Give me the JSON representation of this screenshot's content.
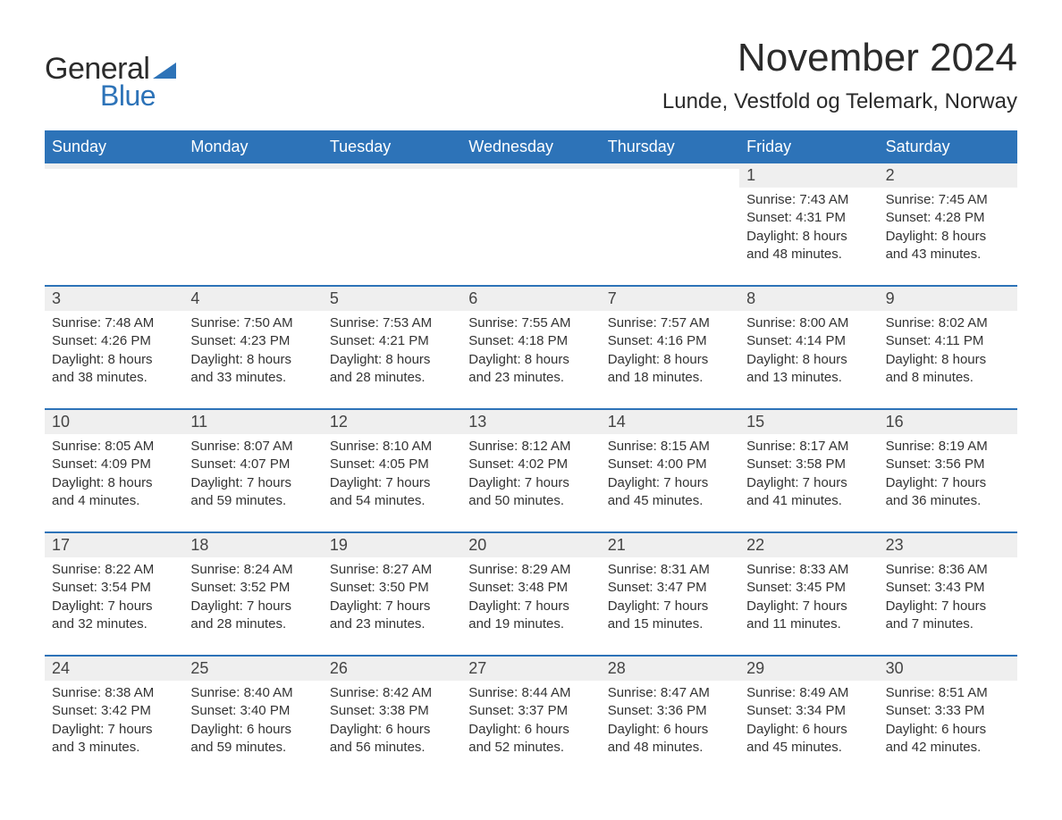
{
  "logo": {
    "text_general": "General",
    "text_blue": "Blue",
    "tri_color": "#2d73b8"
  },
  "title": "November 2024",
  "location": "Lunde, Vestfold og Telemark, Norway",
  "colors": {
    "header_bg": "#2d73b8",
    "header_text": "#ffffff",
    "daynum_bg": "#efefef",
    "border": "#2d73b8",
    "text": "#333333",
    "page_bg": "#ffffff"
  },
  "weekdays": [
    "Sunday",
    "Monday",
    "Tuesday",
    "Wednesday",
    "Thursday",
    "Friday",
    "Saturday"
  ],
  "weeks": [
    [
      {
        "n": "",
        "empty": true
      },
      {
        "n": "",
        "empty": true
      },
      {
        "n": "",
        "empty": true
      },
      {
        "n": "",
        "empty": true
      },
      {
        "n": "",
        "empty": true
      },
      {
        "n": "1",
        "sr": "Sunrise: 7:43 AM",
        "ss": "Sunset: 4:31 PM",
        "d1": "Daylight: 8 hours",
        "d2": "and 48 minutes."
      },
      {
        "n": "2",
        "sr": "Sunrise: 7:45 AM",
        "ss": "Sunset: 4:28 PM",
        "d1": "Daylight: 8 hours",
        "d2": "and 43 minutes."
      }
    ],
    [
      {
        "n": "3",
        "sr": "Sunrise: 7:48 AM",
        "ss": "Sunset: 4:26 PM",
        "d1": "Daylight: 8 hours",
        "d2": "and 38 minutes."
      },
      {
        "n": "4",
        "sr": "Sunrise: 7:50 AM",
        "ss": "Sunset: 4:23 PM",
        "d1": "Daylight: 8 hours",
        "d2": "and 33 minutes."
      },
      {
        "n": "5",
        "sr": "Sunrise: 7:53 AM",
        "ss": "Sunset: 4:21 PM",
        "d1": "Daylight: 8 hours",
        "d2": "and 28 minutes."
      },
      {
        "n": "6",
        "sr": "Sunrise: 7:55 AM",
        "ss": "Sunset: 4:18 PM",
        "d1": "Daylight: 8 hours",
        "d2": "and 23 minutes."
      },
      {
        "n": "7",
        "sr": "Sunrise: 7:57 AM",
        "ss": "Sunset: 4:16 PM",
        "d1": "Daylight: 8 hours",
        "d2": "and 18 minutes."
      },
      {
        "n": "8",
        "sr": "Sunrise: 8:00 AM",
        "ss": "Sunset: 4:14 PM",
        "d1": "Daylight: 8 hours",
        "d2": "and 13 minutes."
      },
      {
        "n": "9",
        "sr": "Sunrise: 8:02 AM",
        "ss": "Sunset: 4:11 PM",
        "d1": "Daylight: 8 hours",
        "d2": "and 8 minutes."
      }
    ],
    [
      {
        "n": "10",
        "sr": "Sunrise: 8:05 AM",
        "ss": "Sunset: 4:09 PM",
        "d1": "Daylight: 8 hours",
        "d2": "and 4 minutes."
      },
      {
        "n": "11",
        "sr": "Sunrise: 8:07 AM",
        "ss": "Sunset: 4:07 PM",
        "d1": "Daylight: 7 hours",
        "d2": "and 59 minutes."
      },
      {
        "n": "12",
        "sr": "Sunrise: 8:10 AM",
        "ss": "Sunset: 4:05 PM",
        "d1": "Daylight: 7 hours",
        "d2": "and 54 minutes."
      },
      {
        "n": "13",
        "sr": "Sunrise: 8:12 AM",
        "ss": "Sunset: 4:02 PM",
        "d1": "Daylight: 7 hours",
        "d2": "and 50 minutes."
      },
      {
        "n": "14",
        "sr": "Sunrise: 8:15 AM",
        "ss": "Sunset: 4:00 PM",
        "d1": "Daylight: 7 hours",
        "d2": "and 45 minutes."
      },
      {
        "n": "15",
        "sr": "Sunrise: 8:17 AM",
        "ss": "Sunset: 3:58 PM",
        "d1": "Daylight: 7 hours",
        "d2": "and 41 minutes."
      },
      {
        "n": "16",
        "sr": "Sunrise: 8:19 AM",
        "ss": "Sunset: 3:56 PM",
        "d1": "Daylight: 7 hours",
        "d2": "and 36 minutes."
      }
    ],
    [
      {
        "n": "17",
        "sr": "Sunrise: 8:22 AM",
        "ss": "Sunset: 3:54 PM",
        "d1": "Daylight: 7 hours",
        "d2": "and 32 minutes."
      },
      {
        "n": "18",
        "sr": "Sunrise: 8:24 AM",
        "ss": "Sunset: 3:52 PM",
        "d1": "Daylight: 7 hours",
        "d2": "and 28 minutes."
      },
      {
        "n": "19",
        "sr": "Sunrise: 8:27 AM",
        "ss": "Sunset: 3:50 PM",
        "d1": "Daylight: 7 hours",
        "d2": "and 23 minutes."
      },
      {
        "n": "20",
        "sr": "Sunrise: 8:29 AM",
        "ss": "Sunset: 3:48 PM",
        "d1": "Daylight: 7 hours",
        "d2": "and 19 minutes."
      },
      {
        "n": "21",
        "sr": "Sunrise: 8:31 AM",
        "ss": "Sunset: 3:47 PM",
        "d1": "Daylight: 7 hours",
        "d2": "and 15 minutes."
      },
      {
        "n": "22",
        "sr": "Sunrise: 8:33 AM",
        "ss": "Sunset: 3:45 PM",
        "d1": "Daylight: 7 hours",
        "d2": "and 11 minutes."
      },
      {
        "n": "23",
        "sr": "Sunrise: 8:36 AM",
        "ss": "Sunset: 3:43 PM",
        "d1": "Daylight: 7 hours",
        "d2": "and 7 minutes."
      }
    ],
    [
      {
        "n": "24",
        "sr": "Sunrise: 8:38 AM",
        "ss": "Sunset: 3:42 PM",
        "d1": "Daylight: 7 hours",
        "d2": "and 3 minutes."
      },
      {
        "n": "25",
        "sr": "Sunrise: 8:40 AM",
        "ss": "Sunset: 3:40 PM",
        "d1": "Daylight: 6 hours",
        "d2": "and 59 minutes."
      },
      {
        "n": "26",
        "sr": "Sunrise: 8:42 AM",
        "ss": "Sunset: 3:38 PM",
        "d1": "Daylight: 6 hours",
        "d2": "and 56 minutes."
      },
      {
        "n": "27",
        "sr": "Sunrise: 8:44 AM",
        "ss": "Sunset: 3:37 PM",
        "d1": "Daylight: 6 hours",
        "d2": "and 52 minutes."
      },
      {
        "n": "28",
        "sr": "Sunrise: 8:47 AM",
        "ss": "Sunset: 3:36 PM",
        "d1": "Daylight: 6 hours",
        "d2": "and 48 minutes."
      },
      {
        "n": "29",
        "sr": "Sunrise: 8:49 AM",
        "ss": "Sunset: 3:34 PM",
        "d1": "Daylight: 6 hours",
        "d2": "and 45 minutes."
      },
      {
        "n": "30",
        "sr": "Sunrise: 8:51 AM",
        "ss": "Sunset: 3:33 PM",
        "d1": "Daylight: 6 hours",
        "d2": "and 42 minutes."
      }
    ]
  ]
}
